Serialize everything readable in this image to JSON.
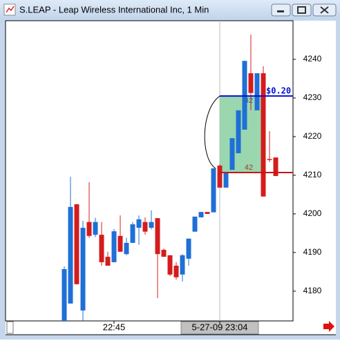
{
  "window": {
    "title": "S.LEAP - Leap Wireless International Inc, 1 Min"
  },
  "chart_data": {
    "type": "candlestick",
    "categories": [
      null,
      null,
      null,
      null,
      null,
      null,
      null,
      null,
      "22:45",
      null,
      null,
      null,
      null,
      null,
      null,
      null,
      null,
      null,
      null,
      null,
      null,
      null,
      null,
      null,
      null,
      "5-27-09 23:04",
      null,
      null,
      null,
      null,
      null,
      null,
      null,
      null,
      null
    ],
    "open": [
      4172.3,
      4176.8,
      4202.5,
      4175,
      4197.9,
      4194.6,
      4194.6,
      4188.9,
      4187.5,
      4194.3,
      4189.6,
      4192.5,
      4196.4,
      4197.9,
      4196.4,
      4198.9,
      4190.7,
      4189.3,
      4186.6,
      4184.3,
      4188.4,
      4195.4,
      4199.1,
      4200.5,
      4200.4,
      4212.5,
      4206.8,
      4211.4,
      4215.7,
      4221.8,
      4236.4,
      4226.8,
      4236.4,
      4214.2,
      4214.6
    ],
    "high": [
      4186.4,
      4209.6,
      4202.5,
      4198.2,
      4208.2,
      4199,
      4197.9,
      4190.2,
      4196.1,
      4199.6,
      4193.8,
      4197.9,
      4199.6,
      4199.1,
      4200.9,
      4198.9,
      4191,
      4189.3,
      4187.5,
      4189.6,
      4193.6,
      4199.3,
      4200.5,
      4200.5,
      4211.8,
      4212.8,
      4210.7,
      4219.6,
      4226.8,
      4239.6,
      4246.4,
      4236.4,
      4238.2,
      4221.4,
      4214.6
    ],
    "low": [
      4172.3,
      4176.8,
      4181.8,
      4172.3,
      4193.8,
      4194,
      4186.6,
      4186.6,
      4187.5,
      4190.2,
      4189.3,
      4192.5,
      4192,
      4194.6,
      4196,
      4178.2,
      4188.9,
      4183.9,
      4183,
      4182.5,
      4186.6,
      4195.4,
      4199.1,
      4200,
      4200.4,
      4206.8,
      4206.8,
      4211.4,
      4215.7,
      4221.8,
      4226.8,
      4226.8,
      4204.5,
      4213.4,
      4209.8
    ],
    "close": [
      4185.7,
      4201.8,
      4181.8,
      4196.4,
      4194.3,
      4197.9,
      4187.5,
      4186.6,
      4195.5,
      4190.2,
      4192.5,
      4197.3,
      4198.6,
      4195.4,
      4197.9,
      4189.6,
      4188.9,
      4184.3,
      4183.6,
      4189.3,
      4193.6,
      4199.3,
      4200.5,
      4200,
      4211.8,
      4206.8,
      4210.7,
      4219.6,
      4226.8,
      4239.6,
      4231.3,
      4236.4,
      4204.5,
      4214,
      4209.8
    ],
    "up_color": "#1f6fd6",
    "down_color": "#d41c1c",
    "ylim": [
      4172.3,
      4250
    ],
    "yticks": [
      4180,
      4190,
      4200,
      4210,
      4220,
      4230,
      4240
    ],
    "levels": [
      {
        "value": 4230.5,
        "color": "#0010d0"
      },
      {
        "value": 4210.7,
        "color": "#c81414"
      }
    ],
    "spread_label": "$0.20",
    "count_labels": [
      "42",
      "42"
    ]
  }
}
